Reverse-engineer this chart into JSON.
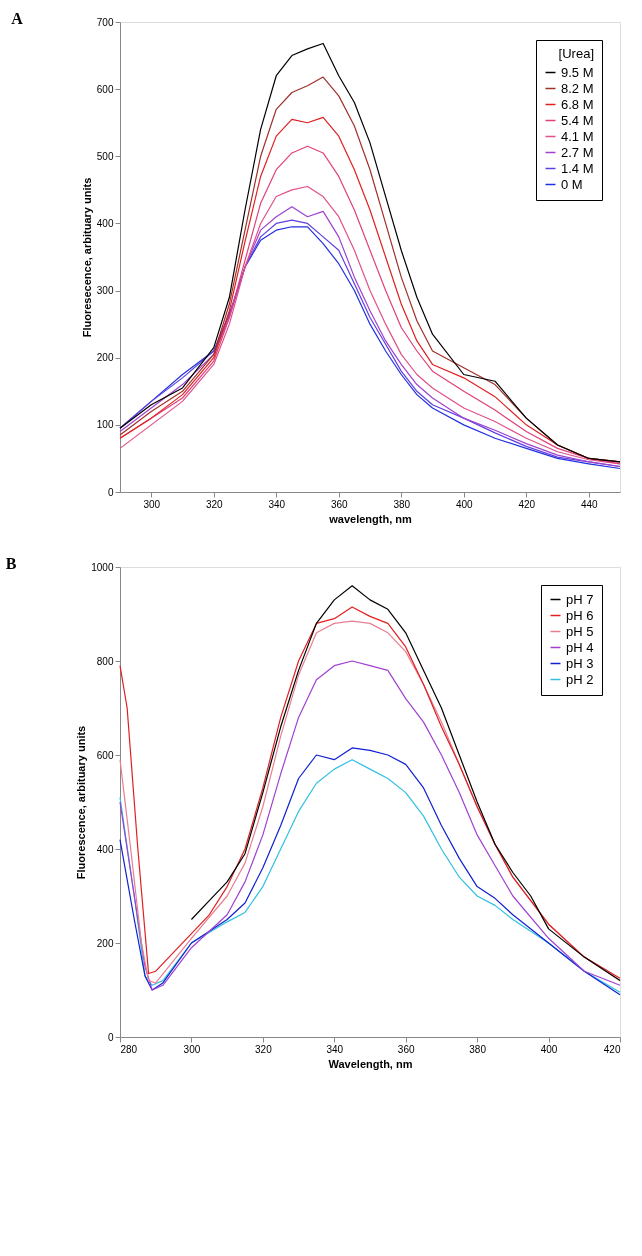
{
  "chart_data": [
    {
      "type": "line",
      "title": "A",
      "xlabel": "wavelength, nm",
      "ylabel": "Fluoresecence, arbituary units",
      "legend_title": "[Urea]",
      "legend": "top right",
      "grid": false,
      "xlim": [
        290,
        450
      ],
      "xticks": [
        300,
        320,
        340,
        360,
        380,
        400,
        420,
        440
      ],
      "ylim": [
        0,
        700
      ],
      "yticks": [
        0,
        100,
        200,
        300,
        400,
        500,
        600,
        700
      ],
      "x": [
        290,
        300,
        310,
        320,
        325,
        330,
        335,
        340,
        345,
        350,
        355,
        360,
        365,
        370,
        375,
        380,
        385,
        390,
        400,
        410,
        420,
        430,
        440,
        450
      ],
      "series": [
        {
          "name": "9.5 M",
          "color": "#000000",
          "values": [
            95,
            130,
            155,
            215,
            290,
            420,
            540,
            620,
            650,
            660,
            668,
            620,
            580,
            520,
            440,
            360,
            290,
            235,
            175,
            165,
            110,
            70,
            50,
            45
          ]
        },
        {
          "name": "8.2 M",
          "color": "#a0302a",
          "values": [
            85,
            120,
            150,
            205,
            280,
            390,
            500,
            570,
            595,
            605,
            618,
            590,
            545,
            480,
            400,
            320,
            255,
            210,
            185,
            160,
            110,
            70,
            50,
            45
          ]
        },
        {
          "name": "6.8 M",
          "color": "#e02020",
          "values": [
            80,
            110,
            145,
            200,
            270,
            373,
            470,
            530,
            555,
            550,
            558,
            530,
            480,
            420,
            350,
            280,
            225,
            190,
            170,
            142,
            100,
            70,
            50,
            45
          ]
        },
        {
          "name": "5.4 M",
          "color": "#e0407a",
          "values": [
            80,
            110,
            140,
            195,
            260,
            345,
            430,
            480,
            505,
            515,
            505,
            470,
            420,
            360,
            300,
            245,
            210,
            180,
            150,
            122,
            90,
            65,
            50,
            42
          ]
        },
        {
          "name": "4.1 M",
          "color": "#e0508a",
          "values": [
            65,
            100,
            135,
            190,
            250,
            335,
            400,
            440,
            450,
            455,
            440,
            410,
            360,
            300,
            250,
            205,
            175,
            155,
            125,
            105,
            80,
            60,
            48,
            42
          ]
        },
        {
          "name": "2.7 M",
          "color": "#a040d0",
          "values": [
            90,
            125,
            160,
            205,
            260,
            335,
            390,
            410,
            425,
            410,
            418,
            380,
            320,
            270,
            225,
            190,
            160,
            140,
            110,
            92,
            72,
            55,
            45,
            38
          ]
        },
        {
          "name": "1.4 M",
          "color": "#6040e0",
          "values": [
            95,
            135,
            170,
            210,
            265,
            335,
            380,
            400,
            405,
            400,
            380,
            360,
            310,
            260,
            220,
            180,
            150,
            130,
            110,
            88,
            68,
            52,
            45,
            38
          ]
        },
        {
          "name": "0 M",
          "color": "#2030e0",
          "values": [
            95,
            135,
            175,
            210,
            265,
            335,
            375,
            390,
            395,
            395,
            370,
            340,
            300,
            250,
            210,
            175,
            145,
            125,
            100,
            80,
            65,
            50,
            42,
            35
          ]
        }
      ]
    },
    {
      "type": "line",
      "title": "B",
      "xlabel": "Wavelength, nm",
      "ylabel": "Fluorescence, arbituary units",
      "legend": "top right",
      "grid": false,
      "xlim": [
        280,
        420
      ],
      "xticks": [
        280,
        300,
        320,
        340,
        360,
        380,
        400,
        420
      ],
      "ylim": [
        0,
        1000
      ],
      "yticks": [
        0,
        200,
        400,
        600,
        800,
        1000
      ],
      "series": [
        {
          "name": "pH 7",
          "color": "#000000",
          "x": [
            300,
            305,
            310,
            315,
            320,
            325,
            330,
            335,
            340,
            345,
            350,
            355,
            360,
            365,
            370,
            375,
            380,
            385,
            390,
            395,
            400,
            410,
            420
          ],
          "values": [
            250,
            290,
            330,
            390,
            520,
            660,
            780,
            880,
            930,
            960,
            930,
            910,
            860,
            780,
            700,
            600,
            500,
            410,
            350,
            300,
            230,
            170,
            120
          ]
        },
        {
          "name": "pH 6",
          "color": "#e02020",
          "x": [
            280,
            282,
            285,
            288,
            290,
            295,
            300,
            305,
            310,
            315,
            320,
            325,
            330,
            335,
            340,
            345,
            350,
            355,
            360,
            365,
            370,
            375,
            380,
            385,
            390,
            395,
            400,
            410,
            420
          ],
          "values": [
            790,
            700,
            400,
            135,
            140,
            180,
            220,
            260,
            320,
            400,
            530,
            680,
            800,
            880,
            890,
            915,
            895,
            880,
            830,
            750,
            660,
            580,
            490,
            410,
            340,
            290,
            240,
            170,
            125
          ]
        },
        {
          "name": "pH 5",
          "color": "#e87f90",
          "x": [
            280,
            283,
            286,
            288,
            290,
            300,
            310,
            315,
            320,
            325,
            330,
            335,
            340,
            345,
            350,
            355,
            360,
            365,
            370,
            375,
            380,
            385,
            390,
            400,
            410,
            420
          ],
          "values": [
            590,
            400,
            200,
            120,
            115,
            210,
            300,
            370,
            490,
            640,
            770,
            860,
            880,
            885,
            880,
            860,
            820,
            750,
            670,
            580,
            490,
            410,
            340,
            240,
            170,
            120
          ]
        },
        {
          "name": "pH 4",
          "color": "#a040d0",
          "x": [
            280,
            284,
            287,
            289,
            292,
            300,
            310,
            315,
            320,
            325,
            330,
            335,
            340,
            345,
            350,
            355,
            360,
            365,
            370,
            375,
            380,
            385,
            390,
            400,
            410,
            420
          ],
          "values": [
            500,
            300,
            150,
            100,
            110,
            190,
            260,
            330,
            430,
            560,
            680,
            760,
            790,
            800,
            790,
            780,
            720,
            670,
            600,
            520,
            430,
            365,
            300,
            210,
            140,
            110
          ]
        },
        {
          "name": "pH 3",
          "color": "#1020d0",
          "x": [
            280,
            284,
            287,
            289,
            292,
            300,
            310,
            315,
            320,
            325,
            330,
            335,
            340,
            345,
            350,
            355,
            360,
            365,
            370,
            375,
            380,
            385,
            390,
            400,
            410,
            420
          ],
          "values": [
            420,
            250,
            130,
            100,
            115,
            200,
            250,
            285,
            360,
            450,
            550,
            600,
            590,
            615,
            610,
            600,
            580,
            530,
            450,
            380,
            320,
            295,
            260,
            200,
            140,
            90
          ]
        },
        {
          "name": "pH 2",
          "color": "#30c0e0",
          "x": [
            280,
            284,
            287,
            289,
            292,
            300,
            310,
            315,
            320,
            325,
            330,
            335,
            340,
            345,
            350,
            355,
            360,
            365,
            370,
            375,
            380,
            385,
            390,
            400,
            410,
            420
          ],
          "values": [
            510,
            300,
            130,
            110,
            120,
            200,
            245,
            265,
            320,
            400,
            480,
            540,
            570,
            590,
            570,
            550,
            520,
            470,
            400,
            340,
            300,
            280,
            250,
            200,
            140,
            95
          ]
        }
      ]
    }
  ]
}
